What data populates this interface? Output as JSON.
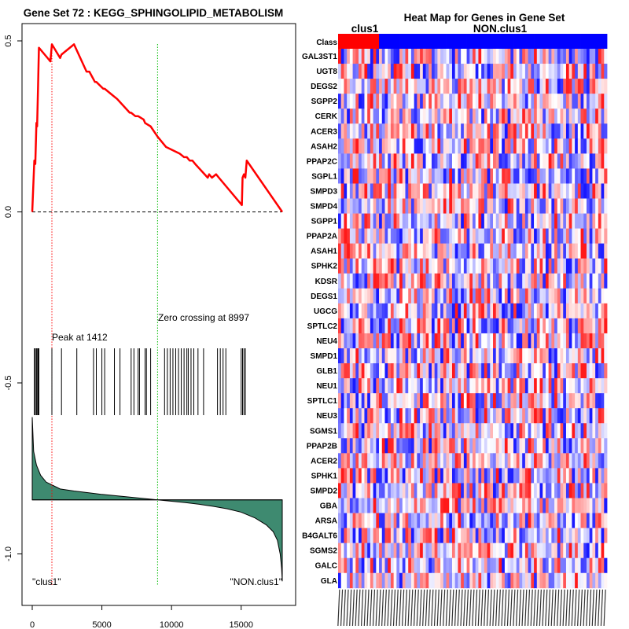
{
  "chart_data": [
    {
      "type": "line",
      "title": "Gene Set  72 : KEGG_SPHINGOLIPID_METABOLISM",
      "xlim": [
        0,
        18000
      ],
      "ylim": [
        -1.1,
        0.5
      ],
      "x_ticks": [
        0,
        5000,
        10000,
        15000
      ],
      "x_tick_labels": [
        "0",
        "5000",
        "10000",
        "15000"
      ],
      "y_ticks": [
        0.5,
        0.0,
        -0.5,
        -1.0
      ],
      "y_tick_labels": [
        "0.5",
        "0.0",
        "-0.5",
        "-1.0"
      ],
      "running_es": {
        "x": [
          0,
          150,
          220,
          300,
          350,
          420,
          480,
          1100,
          1300,
          1412,
          2000,
          2100,
          3000,
          3900,
          4100,
          4500,
          4600,
          5100,
          5200,
          5800,
          6100,
          7000,
          7100,
          7400,
          7600,
          8000,
          8100,
          8500,
          8997,
          9600,
          10600,
          10900,
          11100,
          11300,
          11500,
          11700,
          12600,
          12700,
          12900,
          13200,
          13400,
          15050,
          15100,
          15200,
          15300,
          15400,
          17950
        ],
        "y": [
          0.0,
          0.15,
          0.14,
          0.26,
          0.25,
          0.37,
          0.48,
          0.45,
          0.44,
          0.49,
          0.45,
          0.46,
          0.49,
          0.41,
          0.41,
          0.38,
          0.38,
          0.36,
          0.36,
          0.34,
          0.33,
          0.29,
          0.29,
          0.28,
          0.28,
          0.27,
          0.26,
          0.25,
          0.22,
          0.19,
          0.17,
          0.16,
          0.16,
          0.15,
          0.15,
          0.14,
          0.1,
          0.11,
          0.1,
          0.11,
          0.1,
          0.02,
          0.1,
          0.11,
          0.1,
          0.15,
          0.0
        ]
      },
      "gene_hits": [
        150,
        220,
        300,
        350,
        420,
        480,
        1412,
        2100,
        3200,
        4400,
        4600,
        5000,
        5200,
        5900,
        6300,
        7100,
        7300,
        7600,
        7700,
        8100,
        8200,
        8500,
        9500,
        9700,
        9900,
        10100,
        10300,
        10500,
        10700,
        10900,
        11100,
        11200,
        11400,
        11600,
        11900,
        12300,
        13300,
        13500,
        13700,
        13900,
        15000,
        15100,
        15200,
        15300
      ],
      "peak_label": "Peak at 1412",
      "peak_x": 1412,
      "zero_crossing_label": "Zero crossing at 8997",
      "zero_crossing_x": 8997,
      "ranked_metric": {
        "x": [
          0,
          100,
          300,
          600,
          1000,
          1500,
          2000,
          3000,
          4000,
          5000,
          6000,
          7000,
          8000,
          9000,
          10000,
          11000,
          12000,
          13000,
          14000,
          15000,
          16000,
          16800,
          17300,
          17600,
          17800,
          17900,
          17950
        ],
        "y": [
          -0.6,
          -0.7,
          -0.74,
          -0.77,
          -0.79,
          -0.8,
          -0.81,
          -0.816,
          -0.821,
          -0.826,
          -0.83,
          -0.834,
          -0.838,
          -0.842,
          -0.846,
          -0.85,
          -0.855,
          -0.861,
          -0.868,
          -0.878,
          -0.895,
          -0.915,
          -0.935,
          -0.96,
          -1.0,
          -1.04,
          -1.08
        ],
        "baseline": -0.842
      },
      "left_class_label": "\"clus1\"",
      "right_class_label": "\"NON.clus1\"",
      "colors": {
        "es_line": "#ff0000",
        "peak_line": "#ff0000",
        "zero_line": "#00bb00",
        "metric_fill": "#3e8a70"
      }
    },
    {
      "type": "heatmap",
      "title": "Heat Map for Genes in Gene Set",
      "class_row_label": "Class",
      "class_labels": [
        "clus1",
        "NON.clus1"
      ],
      "class_colors": [
        "#ff0000",
        "#0000ff"
      ],
      "clus1_sample_count": 14,
      "sample_count": 92,
      "rows": [
        "GAL3ST1",
        "UGT8",
        "DEGS2",
        "SGPP2",
        "CERK",
        "ACER3",
        "ASAH2",
        "PPAP2C",
        "SGPL1",
        "SMPD3",
        "SMPD4",
        "SGPP1",
        "PPAP2A",
        "ASAH1",
        "SPHK2",
        "KDSR",
        "DEGS1",
        "UGCG",
        "SPTLC2",
        "NEU4",
        "SMPD1",
        "GLB1",
        "NEU1",
        "SPTLC1",
        "NEU3",
        "SGMS1",
        "PPAP2B",
        "ACER2",
        "SPHK1",
        "SMPD2",
        "GBA",
        "ARSA",
        "B4GALT6",
        "SGMS2",
        "GALC",
        "GLA"
      ],
      "color_scale": [
        "#0000ff",
        "#ffffff",
        "#ff0000"
      ]
    }
  ]
}
